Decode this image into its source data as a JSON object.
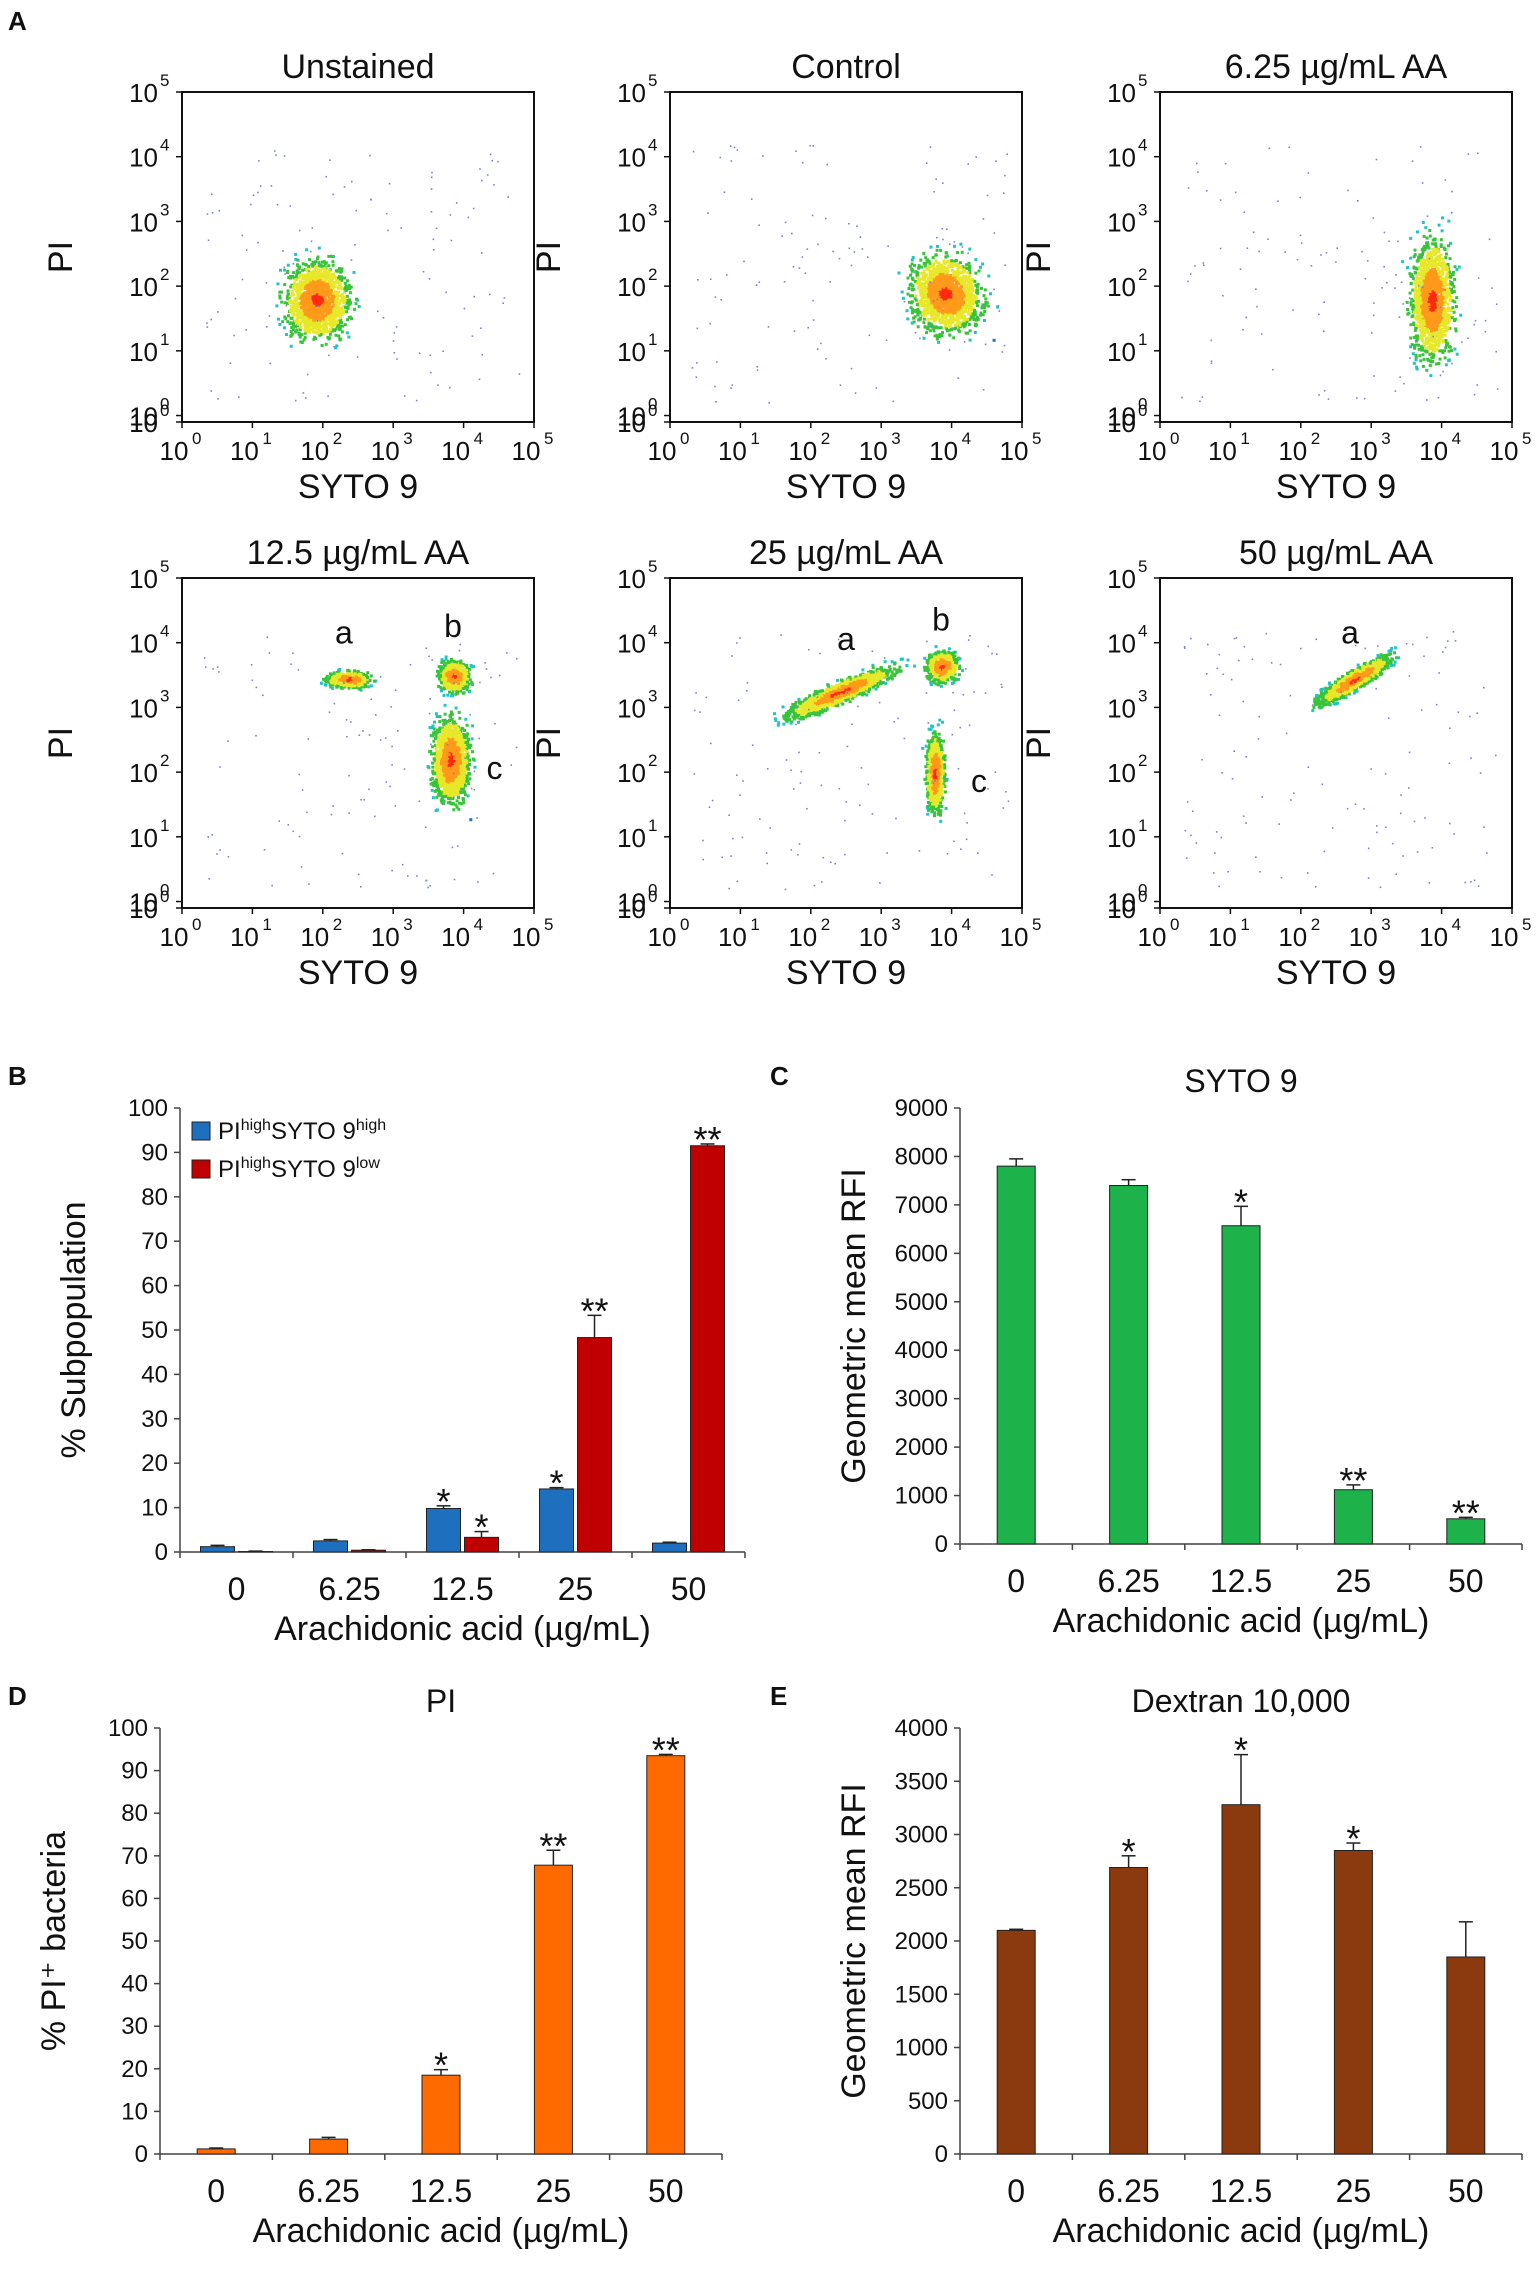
{
  "panel_letters": [
    "A",
    "B",
    "C",
    "D",
    "E"
  ],
  "colors": {
    "blue": "#1f6fbf",
    "red": "#c00000",
    "green": "#1db24a",
    "orange": "#ff6a00",
    "brown": "#8b3a0f",
    "density": [
      "#0a1aa8",
      "#1f6fd8",
      "#22c4c8",
      "#38c43a",
      "#e8e82a",
      "#ff9a1a",
      "#ff2a10"
    ]
  },
  "chart_data": [
    {
      "type": "scatter",
      "id": "flow-unstained",
      "title": "Unstained",
      "xlabel": "SYTO 9",
      "ylabel": "PI",
      "x_ticks": [
        "0",
        "1",
        "2",
        "3",
        "4",
        "5"
      ],
      "y_ticks": [
        "0",
        "0",
        "1",
        "2",
        "3",
        "4",
        "5"
      ],
      "populations": [
        {
          "label": "",
          "x": 1.9,
          "y": 1.85
        }
      ]
    },
    {
      "type": "scatter",
      "id": "flow-control",
      "title": "Control",
      "xlabel": "SYTO 9",
      "ylabel": "PI",
      "x_ticks": [
        "0",
        "1",
        "2",
        "3",
        "4",
        "5"
      ],
      "y_ticks": [
        "0",
        "0",
        "1",
        "2",
        "3",
        "4",
        "5"
      ],
      "populations": [
        {
          "label": "",
          "x": 3.9,
          "y": 1.9
        }
      ]
    },
    {
      "type": "scatter",
      "id": "flow-6-25",
      "title": "6.25 µg/mL AA",
      "xlabel": "SYTO 9",
      "ylabel": "PI",
      "x_ticks": [
        "0",
        "1",
        "2",
        "3",
        "4",
        "5"
      ],
      "y_ticks": [
        "0",
        "0",
        "1",
        "2",
        "3",
        "4",
        "5"
      ],
      "populations": [
        {
          "label": "",
          "x": 3.85,
          "y": 1.9
        }
      ]
    },
    {
      "type": "scatter",
      "id": "flow-12-5",
      "title": "12.5 µg/mL AA",
      "xlabel": "SYTO 9",
      "ylabel": "PI",
      "x_ticks": [
        "0",
        "1",
        "2",
        "3",
        "4",
        "5"
      ],
      "y_ticks": [
        "0",
        "0",
        "1",
        "2",
        "3",
        "4",
        "5"
      ],
      "populations": [
        {
          "label": "a",
          "x": 2.3,
          "y": 3.4
        },
        {
          "label": "b",
          "x": 3.85,
          "y": 3.5
        },
        {
          "label": "c",
          "x": 3.8,
          "y": 2.2
        }
      ]
    },
    {
      "type": "scatter",
      "id": "flow-25",
      "title": "25 µg/mL AA",
      "xlabel": "SYTO 9",
      "ylabel": "PI",
      "x_ticks": [
        "0",
        "1",
        "2",
        "3",
        "4",
        "5"
      ],
      "y_ticks": [
        "0",
        "0",
        "1",
        "2",
        "3",
        "4",
        "5"
      ],
      "populations": [
        {
          "label": "a",
          "x": 2.5,
          "y": 3.3
        },
        {
          "label": "b",
          "x": 3.85,
          "y": 3.6
        },
        {
          "label": "c",
          "x": 3.75,
          "y": 2.0
        }
      ]
    },
    {
      "type": "scatter",
      "id": "flow-50",
      "title": "50 µg/mL AA",
      "xlabel": "SYTO 9",
      "ylabel": "PI",
      "x_ticks": [
        "0",
        "1",
        "2",
        "3",
        "4",
        "5"
      ],
      "y_ticks": [
        "0",
        "0",
        "1",
        "2",
        "3",
        "4",
        "5"
      ],
      "populations": [
        {
          "label": "a",
          "x": 2.7,
          "y": 3.4
        }
      ]
    },
    {
      "type": "bar",
      "id": "panel-b",
      "title": "",
      "categories": [
        "0",
        "6.25",
        "12.5",
        "25",
        "50"
      ],
      "xlabel": "Arachidonic acid (µg/mL)",
      "ylabel": "% Subpopulation",
      "ylim": [
        0,
        100
      ],
      "yticks": [
        "0",
        "10",
        "20",
        "30",
        "40",
        "50",
        "60",
        "70",
        "80",
        "90",
        "100"
      ],
      "legend": [
        {
          "base": "PI",
          "sup1": "high",
          "mid": "SYTO 9",
          "sup2": "high"
        },
        {
          "base": "PI",
          "sup1": "high",
          "mid": "SYTO 9",
          "sup2": "low"
        }
      ],
      "series": [
        {
          "name": "PIhighSYTO 9high",
          "values": [
            1.2,
            2.5,
            9.8,
            14.2,
            2.0
          ],
          "errors": [
            0.3,
            0.3,
            0.6,
            0.3,
            0.2
          ],
          "sig": [
            "",
            "",
            "*",
            "*",
            ""
          ]
        },
        {
          "name": "PIhighSYTO 9low",
          "values": [
            0.1,
            0.4,
            3.3,
            48.3,
            91.5
          ],
          "errors": [
            0.1,
            0.1,
            1.3,
            5.0,
            0.4
          ],
          "sig": [
            "",
            "",
            "*",
            "**",
            "**"
          ]
        }
      ]
    },
    {
      "type": "bar",
      "id": "panel-c",
      "title": "SYTO 9",
      "categories": [
        "0",
        "6.25",
        "12.5",
        "25",
        "50"
      ],
      "xlabel": "Arachidonic acid (µg/mL)",
      "ylabel": "Geometric mean RFI",
      "ylim": [
        0,
        9000
      ],
      "yticks": [
        "0",
        "1000",
        "2000",
        "3000",
        "4000",
        "5000",
        "6000",
        "7000",
        "8000",
        "9000"
      ],
      "series": [
        {
          "name": "SYTO 9",
          "values": [
            7800,
            7400,
            6570,
            1120,
            520
          ],
          "errors": [
            150,
            120,
            400,
            100,
            30
          ],
          "sig": [
            "",
            "",
            "*",
            "**",
            "**"
          ]
        }
      ]
    },
    {
      "type": "bar",
      "id": "panel-d",
      "title": "PI",
      "categories": [
        "0",
        "6.25",
        "12.5",
        "25",
        "50"
      ],
      "xlabel": "Arachidonic acid (µg/mL)",
      "ylabel": "% PI⁺ bacteria",
      "ylim": [
        0,
        100
      ],
      "yticks": [
        "0",
        "10",
        "20",
        "30",
        "40",
        "50",
        "60",
        "70",
        "80",
        "90",
        "100"
      ],
      "series": [
        {
          "name": "PI",
          "values": [
            1.2,
            3.5,
            18.5,
            67.8,
            93.5
          ],
          "errors": [
            0.2,
            0.4,
            1.3,
            3.5,
            0.3
          ],
          "sig": [
            "",
            "",
            "*",
            "**",
            "**"
          ]
        }
      ]
    },
    {
      "type": "bar",
      "id": "panel-e",
      "title": "Dextran 10,000",
      "categories": [
        "0",
        "6.25",
        "12.5",
        "25",
        "50"
      ],
      "xlabel": "Arachidonic acid (µg/mL)",
      "ylabel": "Geometric mean RFI",
      "ylim": [
        0,
        4000
      ],
      "yticks": [
        "0",
        "500",
        "1000",
        "1500",
        "2000",
        "2500",
        "3000",
        "3500",
        "4000"
      ],
      "series": [
        {
          "name": "Dextran 10,000",
          "values": [
            2100,
            2690,
            3280,
            2850,
            1850
          ],
          "errors": [
            10,
            110,
            470,
            70,
            330
          ],
          "sig": [
            "",
            "*",
            "*",
            "*",
            ""
          ]
        }
      ]
    }
  ]
}
